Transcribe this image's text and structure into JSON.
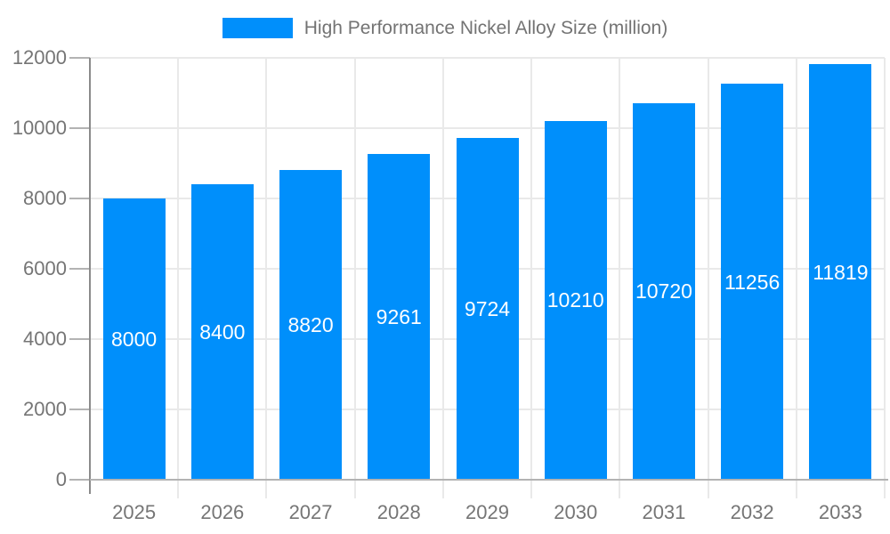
{
  "legend": {
    "items": [
      {
        "label": "High Performance Nickel Alloy Size (million)",
        "color": "#008FFB"
      }
    ]
  },
  "chart_data": {
    "type": "bar",
    "title": "High Performance Nickel Alloy Size (million)",
    "categories": [
      "2025",
      "2026",
      "2027",
      "2028",
      "2029",
      "2030",
      "2031",
      "2032",
      "2033"
    ],
    "series": [
      {
        "name": "High Performance Nickel Alloy Size (million)",
        "values": [
          8000,
          8400,
          8820,
          9261,
          9724,
          10210,
          10720,
          11256,
          11819
        ]
      }
    ],
    "data_labels": [
      8000,
      8400,
      8820,
      9261,
      9724,
      10210,
      10720,
      11256,
      11819
    ],
    "xlabel": "",
    "ylabel": "",
    "ylim": [
      0,
      12000
    ],
    "yticks": [
      0,
      2000,
      4000,
      6000,
      8000,
      10000,
      12000
    ],
    "grid": true,
    "legend_position": "top"
  },
  "colors": {
    "bar": "#008FFB",
    "grid": "#e9e9e9",
    "x_axis_line": "#b3b3b3",
    "y_axis_line": "#8b8b8b",
    "y_tick": "#b3b3b3",
    "axis_label": "#757575",
    "data_label": "#ffffff",
    "background": "#ffffff"
  }
}
